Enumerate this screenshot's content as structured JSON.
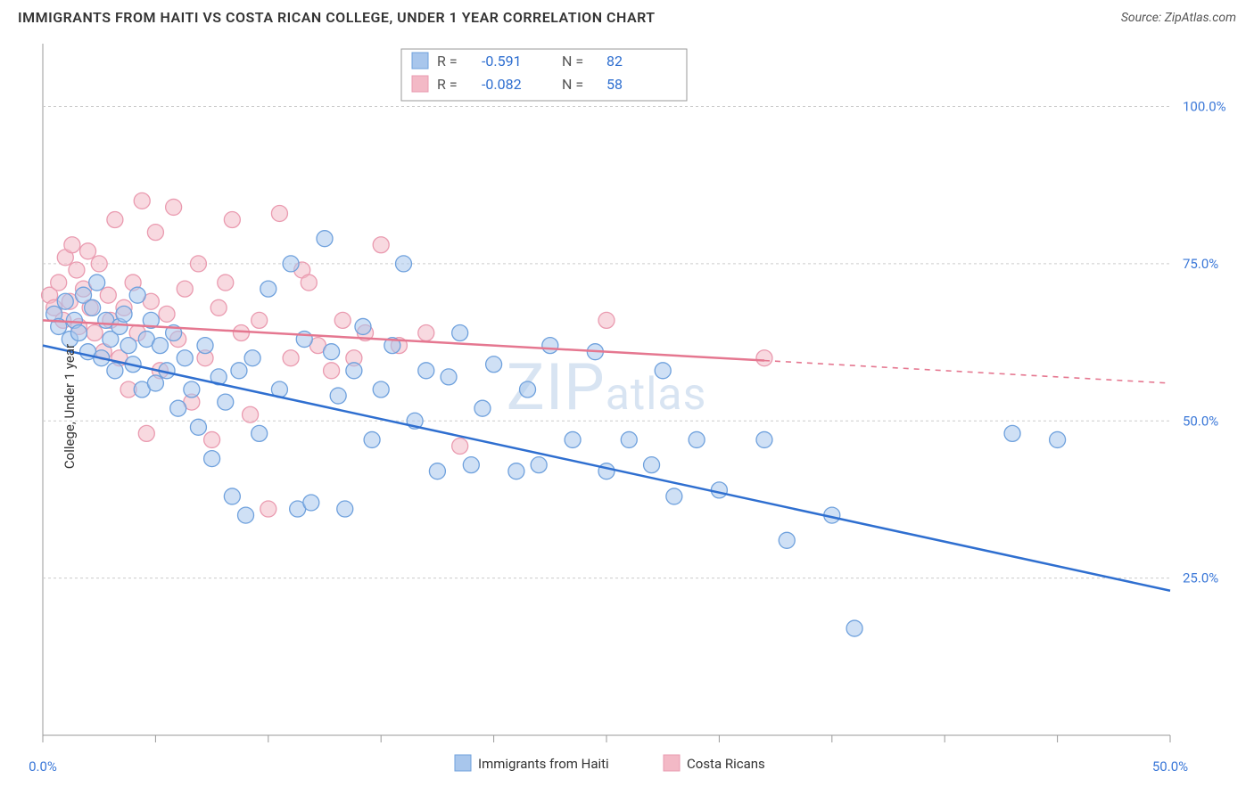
{
  "header": {
    "title": "IMMIGRANTS FROM HAITI VS COSTA RICAN COLLEGE, UNDER 1 YEAR CORRELATION CHART",
    "source_prefix": "Source: ",
    "source_name": "ZipAtlas.com"
  },
  "ylabel": "College, Under 1 year",
  "watermark": {
    "prefix": "ZIP",
    "suffix": "atlas"
  },
  "chart": {
    "type": "scatter",
    "xlim": [
      0,
      50
    ],
    "ylim": [
      0,
      110
    ],
    "xticks": [
      0,
      5,
      10,
      15,
      20,
      25,
      30,
      35,
      40,
      45,
      50
    ],
    "xtick_labels": {
      "0": "0.0%",
      "50": "50.0%"
    },
    "yticks": [
      25,
      50,
      75,
      100
    ],
    "ytick_labels": [
      "25.0%",
      "50.0%",
      "75.0%",
      "100.0%"
    ],
    "grid_color": "#cccccc",
    "axis_color": "#999999",
    "background_color": "#ffffff",
    "marker_radius": 9,
    "marker_opacity": 0.55,
    "line_width": 2.5
  },
  "series": [
    {
      "name": "Immigrants from Haiti",
      "color_fill": "#a8c6ec",
      "color_stroke": "#6fa1dd",
      "line_color": "#2f6fd0",
      "R": "-0.591",
      "N": "82",
      "trend": {
        "x1": 0,
        "y1": 62,
        "x2": 50,
        "y2": 23,
        "solid_until_x": 50
      },
      "points": [
        [
          0.5,
          67
        ],
        [
          0.7,
          65
        ],
        [
          1.0,
          69
        ],
        [
          1.2,
          63
        ],
        [
          1.4,
          66
        ],
        [
          1.6,
          64
        ],
        [
          1.8,
          70
        ],
        [
          2.0,
          61
        ],
        [
          2.2,
          68
        ],
        [
          2.4,
          72
        ],
        [
          2.6,
          60
        ],
        [
          2.8,
          66
        ],
        [
          3.0,
          63
        ],
        [
          3.2,
          58
        ],
        [
          3.4,
          65
        ],
        [
          3.6,
          67
        ],
        [
          3.8,
          62
        ],
        [
          4.0,
          59
        ],
        [
          4.2,
          70
        ],
        [
          4.4,
          55
        ],
        [
          4.6,
          63
        ],
        [
          4.8,
          66
        ],
        [
          5.0,
          56
        ],
        [
          5.2,
          62
        ],
        [
          5.5,
          58
        ],
        [
          5.8,
          64
        ],
        [
          6.0,
          52
        ],
        [
          6.3,
          60
        ],
        [
          6.6,
          55
        ],
        [
          6.9,
          49
        ],
        [
          7.2,
          62
        ],
        [
          7.5,
          44
        ],
        [
          7.8,
          57
        ],
        [
          8.1,
          53
        ],
        [
          8.4,
          38
        ],
        [
          8.7,
          58
        ],
        [
          9.0,
          35
        ],
        [
          9.3,
          60
        ],
        [
          9.6,
          48
        ],
        [
          10.0,
          71
        ],
        [
          10.5,
          55
        ],
        [
          11.0,
          75
        ],
        [
          11.3,
          36
        ],
        [
          11.6,
          63
        ],
        [
          11.9,
          37
        ],
        [
          12.5,
          79
        ],
        [
          12.8,
          61
        ],
        [
          13.1,
          54
        ],
        [
          13.4,
          36
        ],
        [
          13.8,
          58
        ],
        [
          14.2,
          65
        ],
        [
          14.6,
          47
        ],
        [
          15.0,
          55
        ],
        [
          15.5,
          62
        ],
        [
          16.0,
          75
        ],
        [
          16.5,
          50
        ],
        [
          17.0,
          58
        ],
        [
          17.5,
          42
        ],
        [
          18.0,
          57
        ],
        [
          18.5,
          64
        ],
        [
          19.0,
          43
        ],
        [
          19.5,
          52
        ],
        [
          20.0,
          59
        ],
        [
          21.0,
          42
        ],
        [
          21.5,
          55
        ],
        [
          22.0,
          43
        ],
        [
          22.5,
          62
        ],
        [
          23.5,
          47
        ],
        [
          24.5,
          61
        ],
        [
          25.0,
          42
        ],
        [
          26.0,
          47
        ],
        [
          27.0,
          43
        ],
        [
          27.5,
          58
        ],
        [
          28.0,
          38
        ],
        [
          29.0,
          47
        ],
        [
          30.0,
          39
        ],
        [
          32.0,
          47
        ],
        [
          33.0,
          31
        ],
        [
          35.0,
          35
        ],
        [
          36.0,
          17
        ],
        [
          43.0,
          48
        ],
        [
          45.0,
          47
        ]
      ]
    },
    {
      "name": "Costa Ricans",
      "color_fill": "#f3b9c6",
      "color_stroke": "#ea9bb0",
      "line_color": "#e57790",
      "R": "-0.082",
      "N": "58",
      "trend": {
        "x1": 0,
        "y1": 66,
        "x2": 50,
        "y2": 56,
        "solid_until_x": 32
      },
      "points": [
        [
          0.3,
          70
        ],
        [
          0.5,
          68
        ],
        [
          0.7,
          72
        ],
        [
          0.9,
          66
        ],
        [
          1.0,
          76
        ],
        [
          1.2,
          69
        ],
        [
          1.3,
          78
        ],
        [
          1.5,
          74
        ],
        [
          1.6,
          65
        ],
        [
          1.8,
          71
        ],
        [
          2.0,
          77
        ],
        [
          2.1,
          68
        ],
        [
          2.3,
          64
        ],
        [
          2.5,
          75
        ],
        [
          2.7,
          61
        ],
        [
          2.9,
          70
        ],
        [
          3.0,
          66
        ],
        [
          3.2,
          82
        ],
        [
          3.4,
          60
        ],
        [
          3.6,
          68
        ],
        [
          3.8,
          55
        ],
        [
          4.0,
          72
        ],
        [
          4.2,
          64
        ],
        [
          4.4,
          85
        ],
        [
          4.6,
          48
        ],
        [
          4.8,
          69
        ],
        [
          5.0,
          80
        ],
        [
          5.2,
          58
        ],
        [
          5.5,
          67
        ],
        [
          5.8,
          84
        ],
        [
          6.0,
          63
        ],
        [
          6.3,
          71
        ],
        [
          6.6,
          53
        ],
        [
          6.9,
          75
        ],
        [
          7.2,
          60
        ],
        [
          7.5,
          47
        ],
        [
          7.8,
          68
        ],
        [
          8.1,
          72
        ],
        [
          8.4,
          82
        ],
        [
          8.8,
          64
        ],
        [
          9.2,
          51
        ],
        [
          9.6,
          66
        ],
        [
          10.0,
          36
        ],
        [
          10.5,
          83
        ],
        [
          11.0,
          60
        ],
        [
          11.5,
          74
        ],
        [
          11.8,
          72
        ],
        [
          12.2,
          62
        ],
        [
          12.8,
          58
        ],
        [
          13.3,
          66
        ],
        [
          13.8,
          60
        ],
        [
          14.3,
          64
        ],
        [
          15.0,
          78
        ],
        [
          15.8,
          62
        ],
        [
          17.0,
          64
        ],
        [
          18.5,
          46
        ],
        [
          25.0,
          66
        ],
        [
          32.0,
          60
        ]
      ]
    }
  ],
  "stats_legend": {
    "r_label": "R  =",
    "n_label": "N  =",
    "value_color": "#2f6fd0",
    "label_color": "#555555"
  },
  "bottom_legend": {
    "items": [
      {
        "label": "Immigrants from Haiti",
        "fill": "#a8c6ec",
        "stroke": "#6fa1dd"
      },
      {
        "label": "Costa Ricans",
        "fill": "#f3b9c6",
        "stroke": "#ea9bb0"
      }
    ]
  }
}
